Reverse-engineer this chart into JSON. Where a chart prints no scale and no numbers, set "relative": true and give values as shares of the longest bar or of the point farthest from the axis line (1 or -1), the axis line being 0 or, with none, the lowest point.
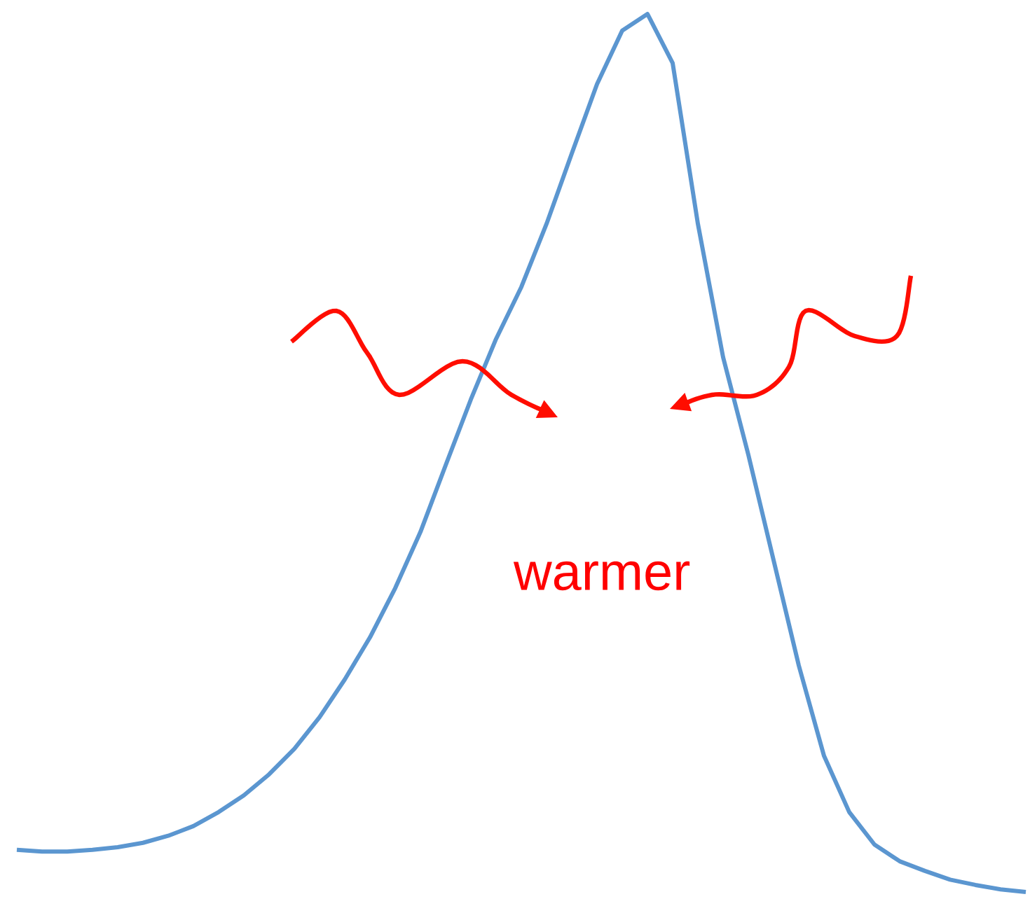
{
  "chart_data": {
    "type": "line",
    "relative": true,
    "categories": [
      null,
      null,
      null,
      null,
      null,
      null,
      null,
      null,
      null,
      null,
      null,
      null,
      null,
      null,
      null,
      null,
      null,
      null,
      null,
      null,
      null,
      null,
      null,
      null,
      null,
      null,
      null,
      null,
      null,
      null,
      null,
      null,
      null,
      null,
      null,
      null,
      null,
      null,
      null,
      null,
      null
    ],
    "series": [
      {
        "color": "#5b96d0",
        "values": [
          0.048,
          0.046,
          0.046,
          0.048,
          0.051,
          0.056,
          0.064,
          0.075,
          0.091,
          0.11,
          0.134,
          0.163,
          0.199,
          0.242,
          0.29,
          0.346,
          0.41,
          0.486,
          0.561,
          0.63,
          0.689,
          0.761,
          0.841,
          0.92,
          0.981,
          1.0,
          0.944,
          0.761,
          0.609,
          0.498,
          0.378,
          0.258,
          0.155,
          0.091,
          0.054,
          0.035,
          0.024,
          0.014,
          0.008,
          0.003,
          0.0
        ]
      }
    ],
    "annotations": [
      "warmer"
    ],
    "line_style": "solid",
    "marker": "none"
  }
}
